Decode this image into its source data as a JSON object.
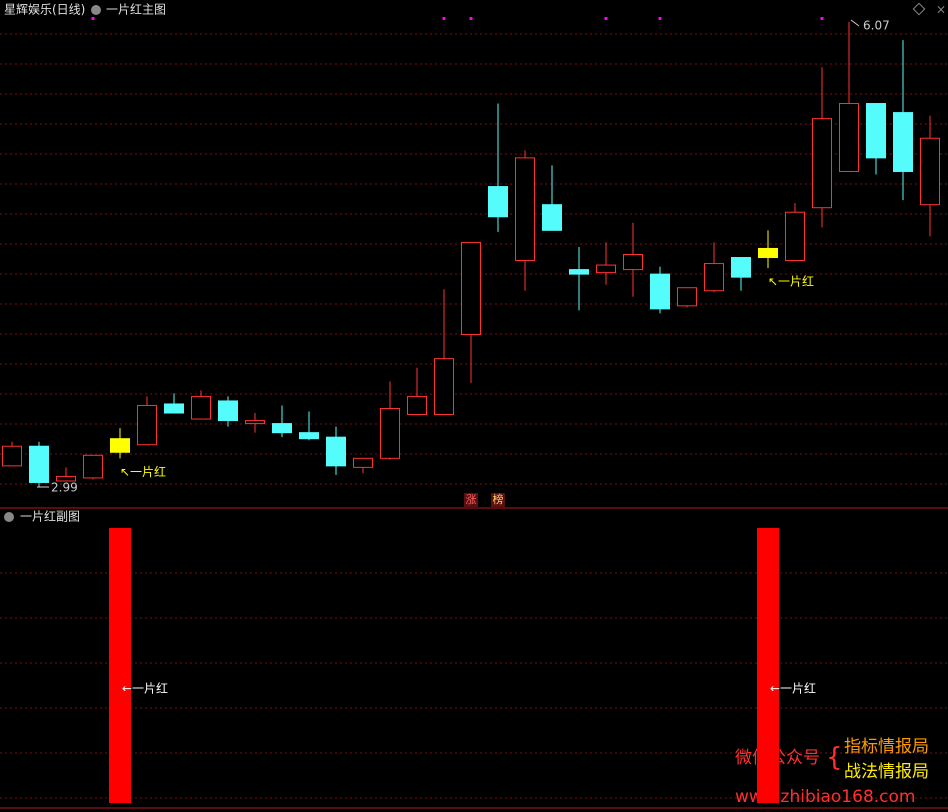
{
  "chart_data": [
    {
      "type": "candlestick",
      "title": "星辉娱乐(日线)",
      "subtitle": "一片红主图",
      "categories": [
        null,
        null,
        null,
        null,
        null,
        null,
        null,
        null,
        null,
        null,
        null,
        null,
        null,
        null,
        null,
        null,
        null,
        null,
        null,
        null,
        null,
        null,
        null,
        null,
        null,
        null,
        null,
        null,
        null,
        null,
        null,
        null,
        null,
        null,
        null
      ],
      "open": [
        3.13,
        3.26,
        3.03,
        3.05,
        3.22,
        3.27,
        3.54,
        3.44,
        3.56,
        3.41,
        3.41,
        3.35,
        3.32,
        3.12,
        3.18,
        3.47,
        3.47,
        4.0,
        4.98,
        4.49,
        4.86,
        4.43,
        4.41,
        4.43,
        4.4,
        4.19,
        4.29,
        4.51,
        4.51,
        4.49,
        4.84,
        5.08,
        5.53,
        5.47,
        4.86
      ],
      "high": [
        3.29,
        3.29,
        3.12,
        3.2,
        3.38,
        3.59,
        3.61,
        3.63,
        3.59,
        3.48,
        3.53,
        3.49,
        3.39,
        3.18,
        3.69,
        3.78,
        4.3,
        4.61,
        5.53,
        5.22,
        5.12,
        4.58,
        4.61,
        4.74,
        4.45,
        4.31,
        4.61,
        4.51,
        4.69,
        4.87,
        5.77,
        6.07,
        5.53,
        5.95,
        5.45
      ],
      "low": [
        3.13,
        2.99,
        3.03,
        3.04,
        3.18,
        3.27,
        3.48,
        3.44,
        3.39,
        3.35,
        3.32,
        3.3,
        3.07,
        3.08,
        3.17,
        3.47,
        3.47,
        3.68,
        4.68,
        4.29,
        4.69,
        4.16,
        4.33,
        4.25,
        4.14,
        4.18,
        4.28,
        4.29,
        4.44,
        4.49,
        4.71,
        5.08,
        5.06,
        4.89,
        4.65
      ],
      "close": [
        3.26,
        3.02,
        3.06,
        3.2,
        3.31,
        3.53,
        3.48,
        3.59,
        3.43,
        3.43,
        3.35,
        3.31,
        3.13,
        3.18,
        3.51,
        3.59,
        3.84,
        4.61,
        4.78,
        5.17,
        4.69,
        4.4,
        4.46,
        4.53,
        4.17,
        4.31,
        4.47,
        4.38,
        4.57,
        4.81,
        5.43,
        5.53,
        5.17,
        5.08,
        5.3
      ],
      "up_color": "#ff3232",
      "down_color": "#54fcfc",
      "signal_color": "#ffff00",
      "grid": true,
      "markers": [
        {
          "index": 4,
          "label": "↖一片红"
        },
        {
          "index": 28,
          "label": "↖一片红"
        }
      ],
      "dot_markers": [
        3,
        16,
        17,
        22,
        24,
        30
      ],
      "dot_color": "#ff00ff",
      "tags": [
        {
          "index": 17,
          "label": "涨"
        },
        {
          "index": 18,
          "label": "榜"
        }
      ]
    },
    {
      "type": "bar",
      "title": "一片红副图",
      "label": "←一片红",
      "color": "#ff0000",
      "ylim": [
        0,
        1
      ],
      "grid": true,
      "values": [
        0,
        0,
        0,
        0,
        1,
        0,
        0,
        0,
        0,
        0,
        0,
        0,
        0,
        0,
        0,
        0,
        0,
        0,
        0,
        0,
        0,
        0,
        0,
        0,
        0,
        0,
        0,
        0,
        1,
        0,
        0,
        0,
        0,
        0,
        0
      ]
    }
  ],
  "watermark": {
    "line1": "微信公众号",
    "line2a": "指标情报局",
    "line2b": "战法情报局",
    "url": "www.zhibiao168.com"
  }
}
